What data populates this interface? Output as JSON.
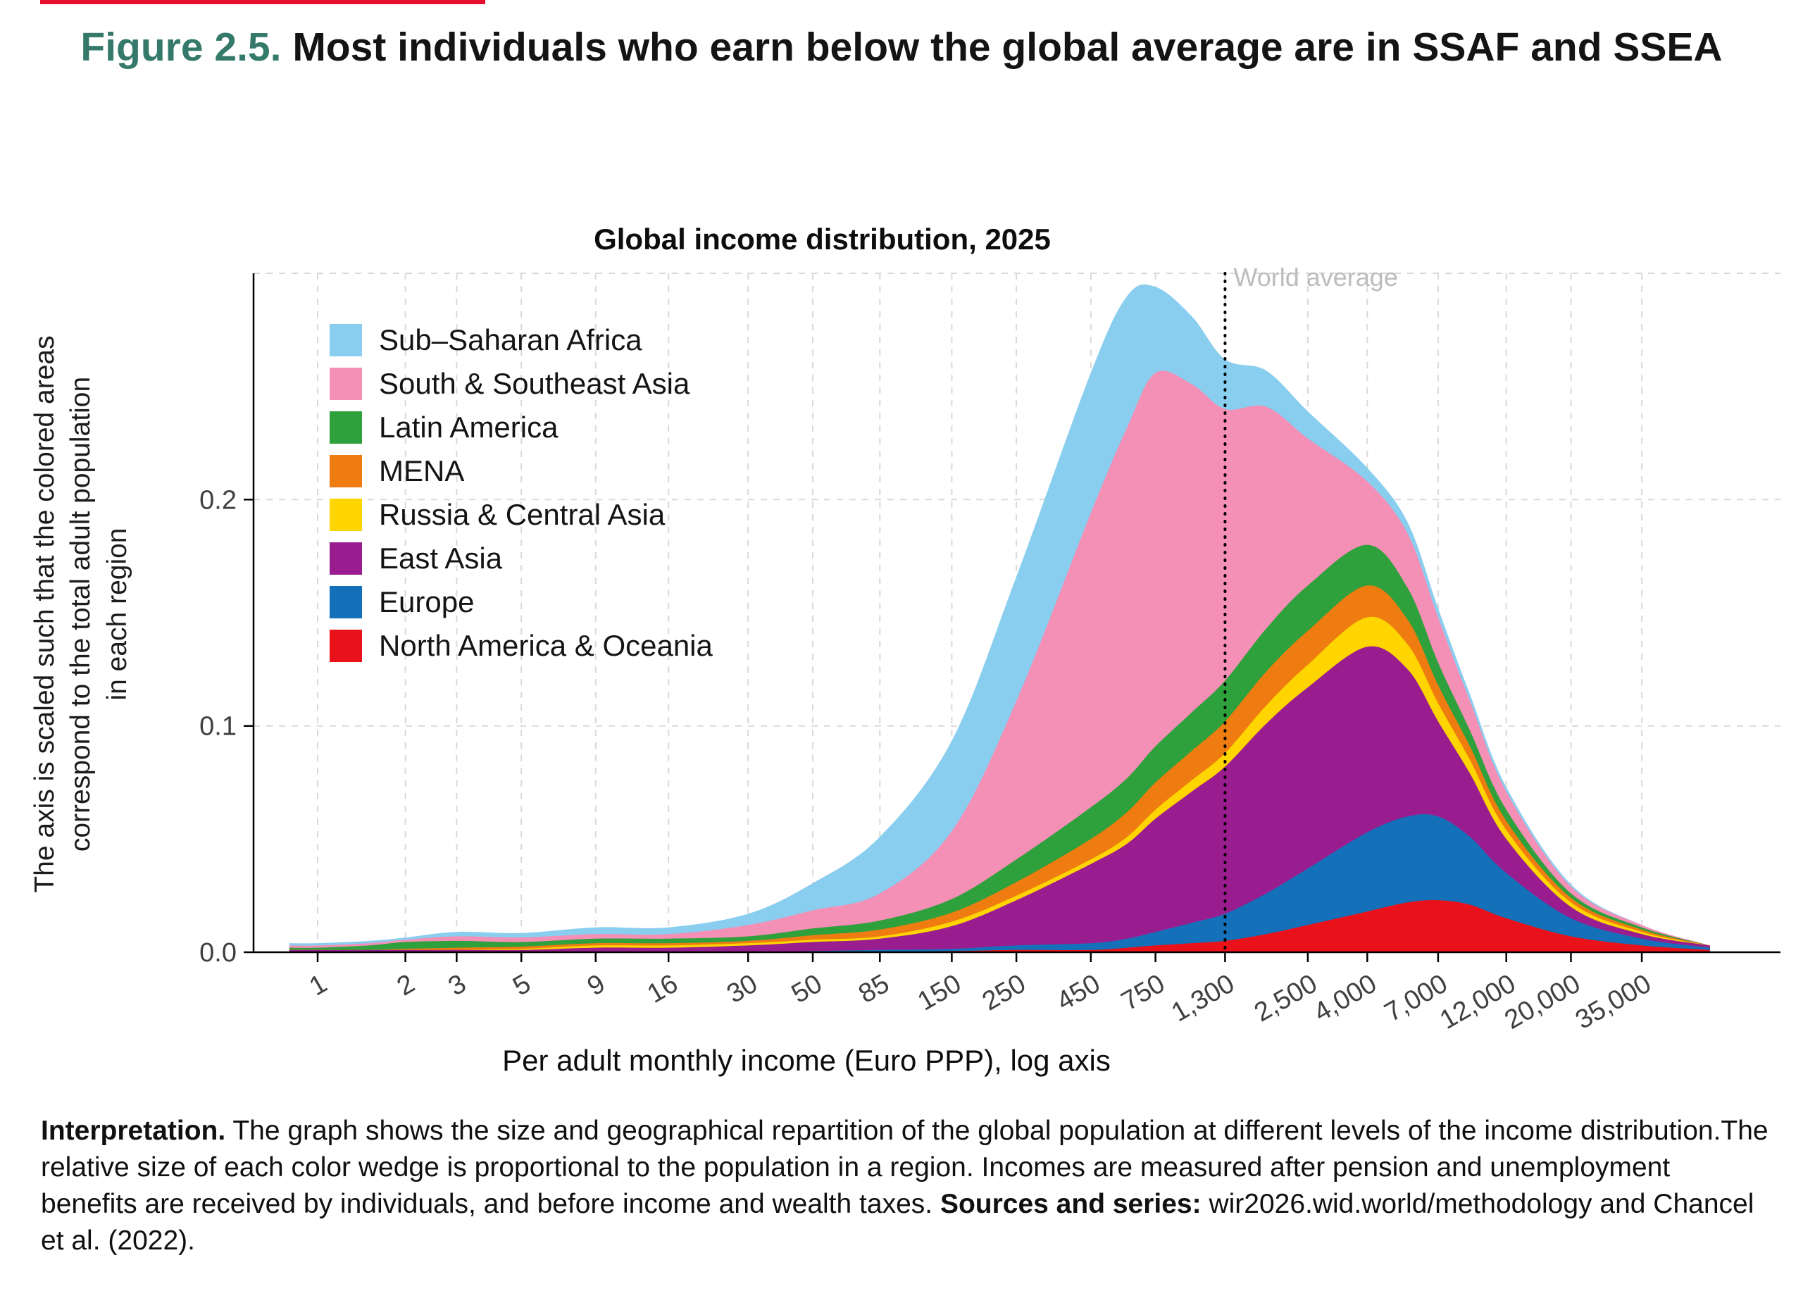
{
  "figure": {
    "label": "Figure 2.5.",
    "title_rest": " Most individuals who earn below the global average are in SSAF and SSEA"
  },
  "chart": {
    "title": "Global income distribution, 2025",
    "x_axis_label": "Per adult monthly income (Euro PPP), log axis",
    "y_axis_label": "The axis is scaled such that the colored areas\ncorrespond  to the total adult population\nin each region"
  },
  "colors": {
    "accent_teal": "#35796a",
    "top_bar_red": "#e8112d",
    "gridline": "#d9d9d9",
    "tick_label": "#404040",
    "world_average_label": "#bcbcbc"
  },
  "chart_data": {
    "type": "area",
    "stacked": true,
    "x_scale": "log",
    "title": "Global income distribution, 2025",
    "xlabel": "Per adult monthly income (Euro PPP), log axis",
    "ylabel": "The axis is scaled such that the colored areas correspond to the total adult population in each region",
    "y_max": 0.3,
    "y_ticks": [
      0,
      0.1,
      0.2
    ],
    "y_tick_labels": [
      "0.0",
      "0.1",
      "0.2"
    ],
    "grid_y": [
      0.1,
      0.2,
      0.3
    ],
    "x_ticks": [
      1,
      2,
      3,
      5,
      9,
      16,
      30,
      50,
      85,
      150,
      250,
      450,
      750,
      1300,
      2500,
      4000,
      7000,
      12000,
      20000,
      35000
    ],
    "x_tick_labels": [
      "1",
      "2",
      "3",
      "5",
      "9",
      "16",
      "30",
      "50",
      "85",
      "150",
      "250",
      "450",
      "750",
      "1,300",
      "2,500",
      "4,000",
      "7,000",
      "12,000",
      "20,000",
      "35,000"
    ],
    "annotation": {
      "label": "World average",
      "x": 1300
    },
    "legend_position": "top-left inside plot, top-to-bottom is reverse of stacking order",
    "x": [
      0.8,
      1,
      1.5,
      2,
      3,
      5,
      9,
      16,
      30,
      50,
      85,
      150,
      250,
      450,
      600,
      750,
      1000,
      1300,
      1800,
      2500,
      4000,
      5500,
      7000,
      9000,
      12000,
      20000,
      35000,
      60000
    ],
    "series": [
      {
        "name": "North America & Oceania",
        "color": "#e9121b",
        "values": [
          0,
          0,
          0,
          0,
          0,
          0,
          0,
          0,
          0,
          0,
          0,
          0.0005,
          0.001,
          0.001,
          0.002,
          0.003,
          0.004,
          0.005,
          0.008,
          0.012,
          0.018,
          0.022,
          0.023,
          0.021,
          0.015,
          0.007,
          0.003,
          0.001
        ]
      },
      {
        "name": "Europe",
        "color": "#1470b8",
        "values": [
          0,
          0,
          0,
          0,
          0,
          0,
          0,
          0,
          0,
          0.0005,
          0.001,
          0.001,
          0.002,
          0.003,
          0.004,
          0.006,
          0.009,
          0.012,
          0.018,
          0.025,
          0.035,
          0.038,
          0.037,
          0.03,
          0.02,
          0.008,
          0.003,
          0.001
        ]
      },
      {
        "name": "East Asia",
        "color": "#9a1d90",
        "values": [
          0.001,
          0.001,
          0.001,
          0.001,
          0.001,
          0.001,
          0.002,
          0.002,
          0.003,
          0.004,
          0.005,
          0.01,
          0.02,
          0.035,
          0.042,
          0.05,
          0.058,
          0.065,
          0.075,
          0.08,
          0.082,
          0.065,
          0.042,
          0.028,
          0.015,
          0.005,
          0.002,
          0.001
        ]
      },
      {
        "name": "Russia & Central Asia",
        "color": "#fed500",
        "values": [
          0,
          0,
          0,
          0,
          0,
          0.0005,
          0.001,
          0.001,
          0.001,
          0.001,
          0.001,
          0.002,
          0.002,
          0.002,
          0.003,
          0.004,
          0.005,
          0.006,
          0.008,
          0.01,
          0.013,
          0.011,
          0.008,
          0.006,
          0.004,
          0.002,
          0.001,
          0
        ]
      },
      {
        "name": "MENA",
        "color": "#ee7c10",
        "values": [
          0,
          0,
          0,
          0.0005,
          0.001,
          0.001,
          0.001,
          0.001,
          0.001,
          0.002,
          0.003,
          0.004,
          0.006,
          0.009,
          0.011,
          0.012,
          0.013,
          0.014,
          0.015,
          0.015,
          0.014,
          0.011,
          0.008,
          0.006,
          0.004,
          0.002,
          0.001,
          0
        ]
      },
      {
        "name": "Latin America",
        "color": "#2ea03c",
        "values": [
          0.001,
          0.001,
          0.002,
          0.003,
          0.003,
          0.002,
          0.002,
          0.002,
          0.002,
          0.003,
          0.004,
          0.006,
          0.01,
          0.014,
          0.015,
          0.016,
          0.017,
          0.018,
          0.019,
          0.02,
          0.018,
          0.014,
          0.01,
          0.007,
          0.005,
          0.002,
          0.001,
          0
        ]
      },
      {
        "name": "South & Southeast Asia",
        "color": "#f48fb6",
        "values": [
          0.001,
          0.001,
          0.001,
          0.001,
          0.002,
          0.002,
          0.002,
          0.002,
          0.005,
          0.008,
          0.012,
          0.03,
          0.07,
          0.13,
          0.155,
          0.165,
          0.145,
          0.12,
          0.098,
          0.065,
          0.028,
          0.024,
          0.02,
          0.013,
          0.008,
          0.003,
          0.001,
          0
        ]
      },
      {
        "name": "Sub–Saharan Africa",
        "color": "#8aceef",
        "values": [
          0.001,
          0.001,
          0.001,
          0.001,
          0.002,
          0.002,
          0.003,
          0.003,
          0.005,
          0.012,
          0.025,
          0.04,
          0.055,
          0.062,
          0.058,
          0.038,
          0.03,
          0.022,
          0.016,
          0.012,
          0.006,
          0.005,
          0.004,
          0.003,
          0.002,
          0.001,
          0,
          0
        ]
      }
    ]
  },
  "interpretation": {
    "label": "Interpretation.",
    "text": " The graph shows the size and geographical repartition of the global population at different levels of the income distribution.The relative size of each color wedge is proportional to the population in a region. Incomes are measured after pension and unemployment benefits are received by individuals, and before income and wealth taxes. ",
    "sources_label": "Sources and series:",
    "sources_text": " wir2026.wid.world/methodology and Chancel et al. (2022)."
  }
}
